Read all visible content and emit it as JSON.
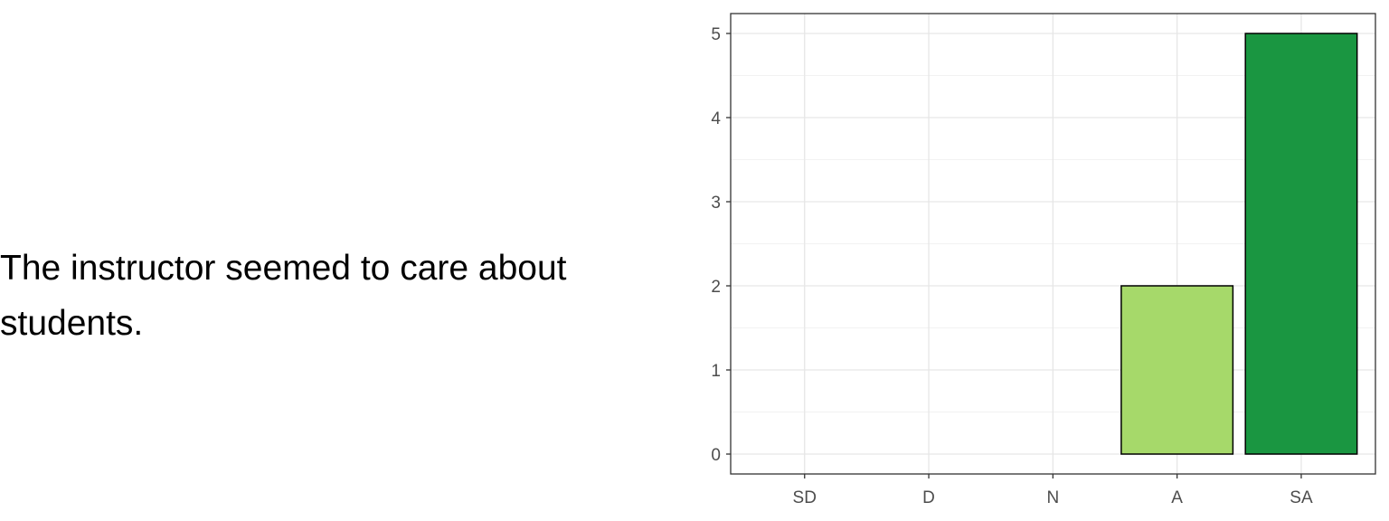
{
  "question": {
    "text": "The instructor seemed to care about students."
  },
  "chart_data": {
    "type": "bar",
    "title": "",
    "xlabel": "",
    "ylabel": "",
    "categories": [
      "SD",
      "D",
      "N",
      "A",
      "SA"
    ],
    "values": [
      0,
      0,
      0,
      2,
      5
    ],
    "colors": [
      "#ffffcc",
      "#d9f0a3",
      "#addd8e",
      "#a6d96a",
      "#1a9641"
    ],
    "yticks": [
      "0",
      "1",
      "2",
      "3",
      "4",
      "5"
    ],
    "ylim": [
      0,
      5
    ],
    "grid": true,
    "legend": "none"
  }
}
